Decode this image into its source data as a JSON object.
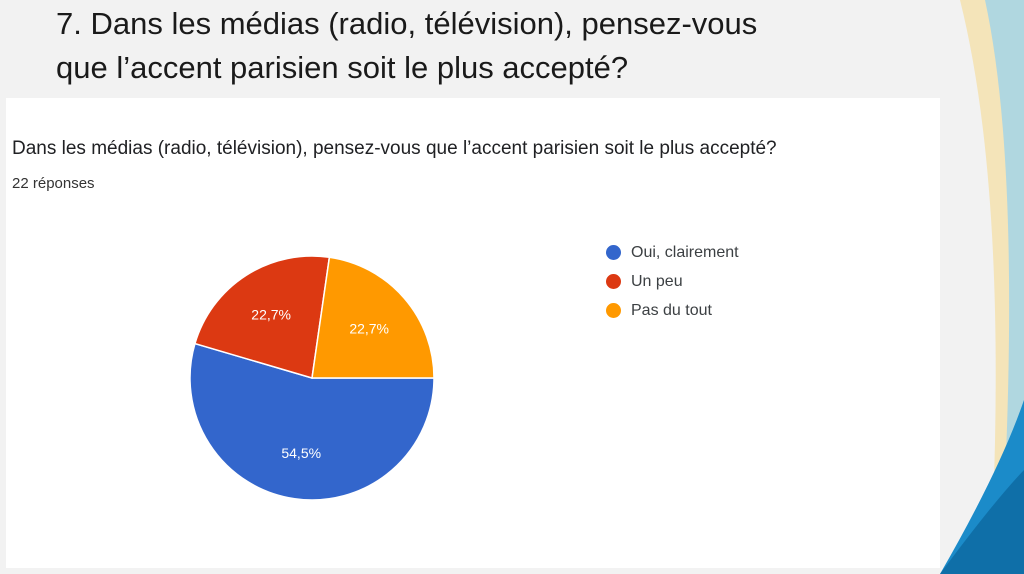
{
  "slide": {
    "title_line1": "7. Dans les médias (radio, télévision), pensez-vous",
    "title_line2": "que l’accent parisien soit le plus accepté?"
  },
  "chart_data": {
    "type": "pie",
    "title": "Dans les médias (radio, télévision), pensez-vous que l’accent parisien soit le plus accepté?",
    "subtitle": "22 réponses",
    "legend_position": "right",
    "slices": [
      {
        "label": "Oui, clairement",
        "value": 54.5,
        "display": "54,5%",
        "color": "#3366cc"
      },
      {
        "label": "Un peu",
        "value": 22.7,
        "display": "22,7%",
        "color": "#dc3912"
      },
      {
        "label": "Pas du tout",
        "value": 22.7,
        "display": "22,7%",
        "color": "#ff9900"
      }
    ]
  }
}
